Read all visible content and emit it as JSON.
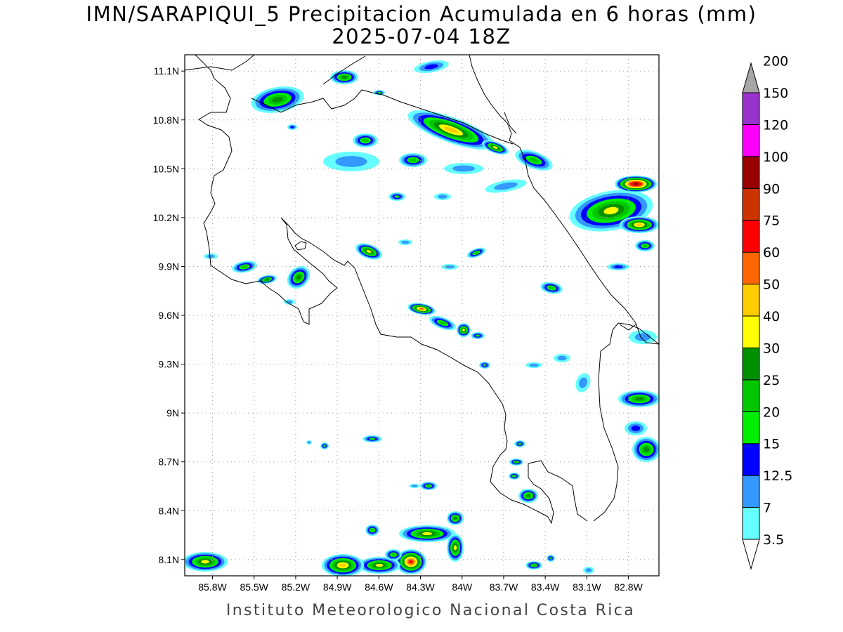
{
  "title": {
    "line1": "IMN/SARAPIQUI_5 Precipitacion Acumulada en 6 horas (mm)",
    "line2": "2025-07-04 18Z"
  },
  "footer": "Instituto Meteorologico Nacional Costa Rica",
  "map": {
    "lon_range": [
      -86.0,
      -82.58
    ],
    "lat_range": [
      8.0,
      11.2
    ],
    "lon_ticks": [
      "85.8W",
      "85.5W",
      "85.2W",
      "84.9W",
      "84.6W",
      "84.3W",
      "84W",
      "83.7W",
      "83.4W",
      "83.1W",
      "82.8W"
    ],
    "lat_ticks": [
      "11.1N",
      "10.8N",
      "10.5N",
      "10.2N",
      "9.9N",
      "9.6N",
      "9.3N",
      "9N",
      "8.7N",
      "8.4N",
      "8.1N"
    ],
    "grid": true,
    "coastline_color": "#000000"
  },
  "colorbar": {
    "colors": [
      "#66ffff",
      "#3399ff",
      "#0000ff",
      "#00ee00",
      "#00c800",
      "#009000",
      "#ffff00",
      "#ffcc00",
      "#ff6600",
      "#ff0000",
      "#cc3300",
      "#990000",
      "#ff00ff",
      "#9933cc",
      "#f2f2f2",
      "#a6a6a6"
    ],
    "labels": [
      "3.5",
      "7",
      "12.5",
      "15",
      "20",
      "25",
      "30",
      "40",
      "50",
      "60",
      "75",
      "90",
      "100",
      "120",
      "150",
      "200"
    ]
  }
}
